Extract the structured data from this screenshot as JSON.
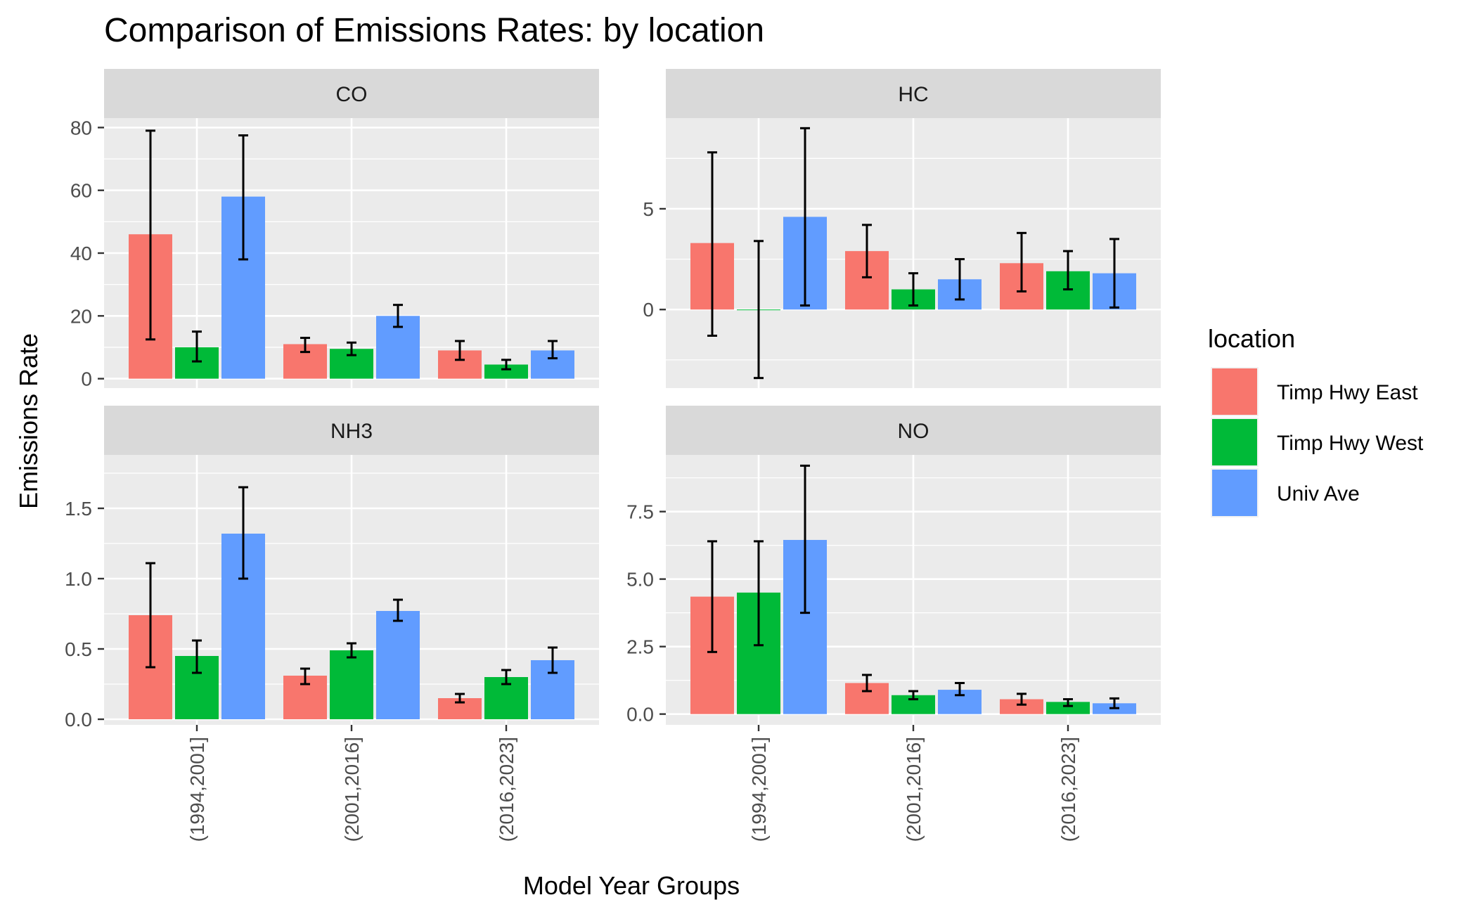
{
  "chart_data": {
    "type": "bar",
    "title": "Comparison of Emissions Rates: by location",
    "xlabel": "Model Year Groups",
    "ylabel": "Emissions Rate",
    "categories": [
      "(1994,2001]",
      "(2001,2016]",
      "(2016,2023]"
    ],
    "grid": true,
    "legend": {
      "title": "location",
      "placement": "right",
      "entries": [
        "Timp Hwy East",
        "Timp Hwy West",
        "Univ Ave"
      ]
    },
    "colors": {
      "Timp Hwy East": "#F8766D",
      "Timp Hwy West": "#00BA38",
      "Univ Ave": "#619CFF"
    },
    "panels": [
      {
        "name": "CO",
        "ylim": [
          -3,
          83
        ],
        "ticks": [
          0,
          20,
          40,
          60,
          80
        ],
        "tick_labels": [
          "0",
          "20",
          "40",
          "60",
          "80"
        ],
        "series": [
          {
            "name": "Timp Hwy East",
            "values": [
              46,
              11,
              9
            ],
            "err_low": [
              12.5,
              8.5,
              6
            ],
            "err_high": [
              79,
              13,
              12
            ]
          },
          {
            "name": "Timp Hwy West",
            "values": [
              10,
              9.5,
              4.5
            ],
            "err_low": [
              5.5,
              7.5,
              3
            ],
            "err_high": [
              15,
              11.5,
              6
            ]
          },
          {
            "name": "Univ Ave",
            "values": [
              58,
              20,
              9
            ],
            "err_low": [
              38,
              16.5,
              6.5
            ],
            "err_high": [
              77.5,
              23.5,
              12
            ]
          }
        ]
      },
      {
        "name": "HC",
        "ylim": [
          -3.9,
          9.5
        ],
        "ticks": [
          0,
          5
        ],
        "tick_labels": [
          "0",
          "5"
        ],
        "series": [
          {
            "name": "Timp Hwy East",
            "values": [
              3.3,
              2.9,
              2.3
            ],
            "err_low": [
              -1.3,
              1.6,
              0.9
            ],
            "err_high": [
              7.8,
              4.2,
              3.8
            ]
          },
          {
            "name": "Timp Hwy West",
            "values": [
              0,
              1.0,
              1.9
            ],
            "err_low": [
              -3.4,
              0.2,
              1.0
            ],
            "err_high": [
              3.4,
              1.8,
              2.9
            ]
          },
          {
            "name": "Univ Ave",
            "values": [
              4.6,
              1.5,
              1.8
            ],
            "err_low": [
              0.2,
              0.5,
              0.1
            ],
            "err_high": [
              9.0,
              2.5,
              3.5
            ]
          }
        ]
      },
      {
        "name": "NH3",
        "ylim": [
          -0.04,
          1.88
        ],
        "ticks": [
          0,
          0.5,
          1.0,
          1.5
        ],
        "tick_labels": [
          "0.0",
          "0.5",
          "1.0",
          "1.5"
        ],
        "series": [
          {
            "name": "Timp Hwy East",
            "values": [
              0.74,
              0.31,
              0.15
            ],
            "err_low": [
              0.37,
              0.25,
              0.12
            ],
            "err_high": [
              1.11,
              0.36,
              0.18
            ]
          },
          {
            "name": "Timp Hwy West",
            "values": [
              0.45,
              0.49,
              0.3
            ],
            "err_low": [
              0.33,
              0.44,
              0.25
            ],
            "err_high": [
              0.56,
              0.54,
              0.35
            ]
          },
          {
            "name": "Univ Ave",
            "values": [
              1.32,
              0.77,
              0.42
            ],
            "err_low": [
              1.0,
              0.7,
              0.33
            ],
            "err_high": [
              1.65,
              0.85,
              0.51
            ]
          }
        ]
      },
      {
        "name": "NO",
        "ylim": [
          -0.4,
          9.6
        ],
        "ticks": [
          0,
          2.5,
          5.0,
          7.5
        ],
        "tick_labels": [
          "0.0",
          "2.5",
          "5.0",
          "7.5"
        ],
        "series": [
          {
            "name": "Timp Hwy East",
            "values": [
              4.35,
              1.15,
              0.55
            ],
            "err_low": [
              2.3,
              0.85,
              0.35
            ],
            "err_high": [
              6.4,
              1.45,
              0.75
            ]
          },
          {
            "name": "Timp Hwy West",
            "values": [
              4.5,
              0.7,
              0.45
            ],
            "err_low": [
              2.55,
              0.55,
              0.3
            ],
            "err_high": [
              6.4,
              0.85,
              0.55
            ]
          },
          {
            "name": "Univ Ave",
            "values": [
              6.45,
              0.9,
              0.4
            ],
            "err_low": [
              3.75,
              0.7,
              0.22
            ],
            "err_high": [
              9.2,
              1.15,
              0.58
            ]
          }
        ]
      }
    ]
  }
}
